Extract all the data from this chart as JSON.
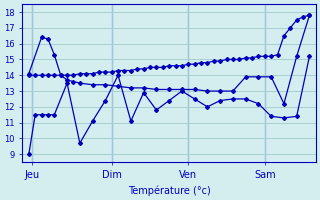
{
  "background_color": "#d4eef0",
  "grid_color": "#a8cdd0",
  "line_color": "#0000bb",
  "xlabel": "Température (°c)",
  "ylabel_vals": [
    9,
    10,
    11,
    12,
    13,
    14,
    15,
    16,
    17,
    18
  ],
  "day_labels": [
    "Jeu",
    "Dim",
    "Ven",
    "Sam"
  ],
  "day_positions": [
    0.5,
    13,
    25,
    37
  ],
  "ylim": [
    8.5,
    18.5
  ],
  "xlim": [
    -1,
    45
  ],
  "series_top_x": [
    0,
    1,
    2,
    3,
    4,
    5,
    6,
    7,
    8,
    9,
    10,
    11,
    12,
    13,
    14,
    15,
    16,
    17,
    18,
    19,
    20,
    21,
    22,
    23,
    24,
    25,
    26,
    27,
    28,
    29,
    30,
    31,
    32,
    33,
    34,
    35,
    36,
    37,
    38,
    39,
    40,
    41,
    42,
    43,
    44
  ],
  "series_top_y": [
    14.0,
    14.0,
    14.0,
    14.0,
    14.0,
    14.0,
    14.0,
    14.0,
    14.1,
    14.1,
    14.1,
    14.2,
    14.2,
    14.2,
    14.3,
    14.3,
    14.3,
    14.4,
    14.4,
    14.5,
    14.5,
    14.5,
    14.6,
    14.6,
    14.6,
    14.7,
    14.7,
    14.8,
    14.8,
    14.9,
    14.9,
    15.0,
    15.0,
    15.0,
    15.1,
    15.1,
    15.2,
    15.2,
    15.2,
    15.3,
    16.5,
    17.0,
    17.5,
    17.7,
    17.8
  ],
  "series_mid_x": [
    0,
    2,
    3,
    4,
    5,
    6,
    7,
    8,
    10,
    12,
    14,
    16,
    18,
    20,
    22,
    24,
    26,
    28,
    30,
    32,
    34,
    36,
    38,
    40,
    42,
    44
  ],
  "series_mid_y": [
    14.1,
    16.4,
    16.3,
    15.3,
    14.0,
    13.7,
    13.6,
    13.5,
    13.4,
    13.4,
    13.3,
    13.2,
    13.2,
    13.1,
    13.1,
    13.1,
    13.1,
    13.0,
    13.0,
    13.0,
    13.9,
    13.9,
    13.9,
    12.2,
    15.2,
    17.8
  ],
  "series_low_x": [
    0,
    1,
    2,
    3,
    4,
    6,
    8,
    10,
    12,
    14,
    16,
    18,
    20,
    22,
    24,
    26,
    28,
    30,
    32,
    34,
    36,
    38,
    40,
    42,
    44
  ],
  "series_low_y": [
    9.0,
    11.5,
    11.5,
    11.5,
    11.5,
    13.5,
    9.7,
    11.1,
    12.4,
    14.0,
    11.1,
    12.9,
    11.8,
    12.4,
    13.0,
    12.5,
    12.0,
    12.4,
    12.5,
    12.5,
    12.2,
    11.4,
    11.3,
    11.4,
    15.2
  ]
}
